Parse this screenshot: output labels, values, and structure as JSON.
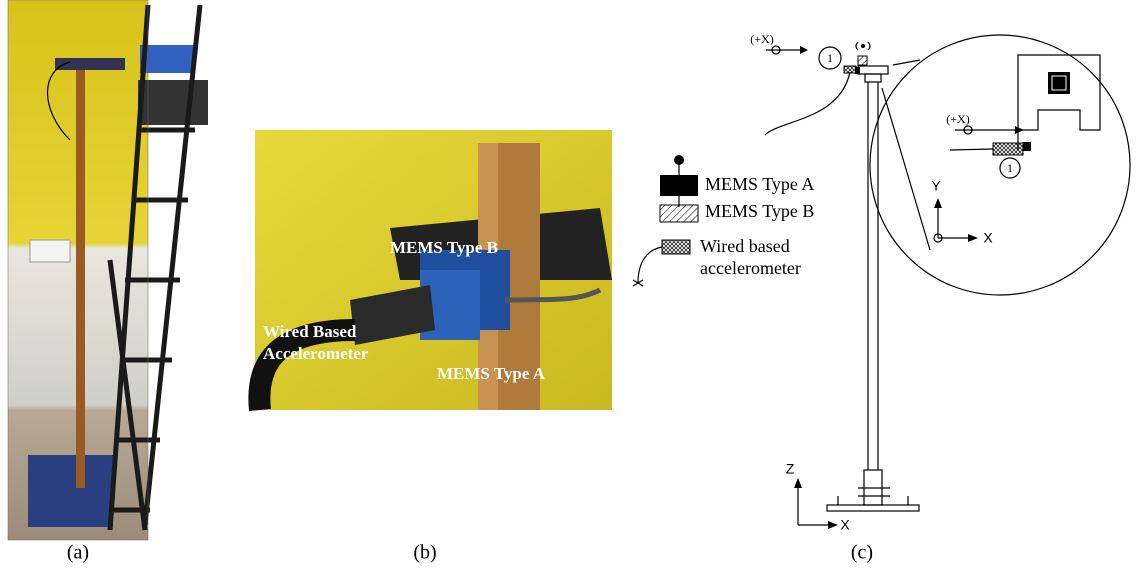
{
  "panels": {
    "a": {
      "caption": "(a)"
    },
    "b": {
      "caption": "(b)",
      "labels": {
        "mems_b": "MEMS Type B",
        "wired": [
          "Wired Based",
          "Accelerometer"
        ],
        "mems_a": "MEMS Type A"
      }
    },
    "c": {
      "caption": "(c)",
      "direction": "(+X)",
      "sensor_id": "1",
      "legend": {
        "mems_a": "MEMS Type A",
        "mems_b": "MEMS Type B",
        "wired": [
          "Wired based",
          "accelerometer"
        ]
      },
      "plan_axes": {
        "vertical": "Y",
        "horizontal": "X"
      },
      "elevation_axes": {
        "vertical": "Z",
        "horizontal": "X"
      },
      "detail": {
        "direction": "(+X)",
        "sensor_id": "1"
      }
    }
  }
}
